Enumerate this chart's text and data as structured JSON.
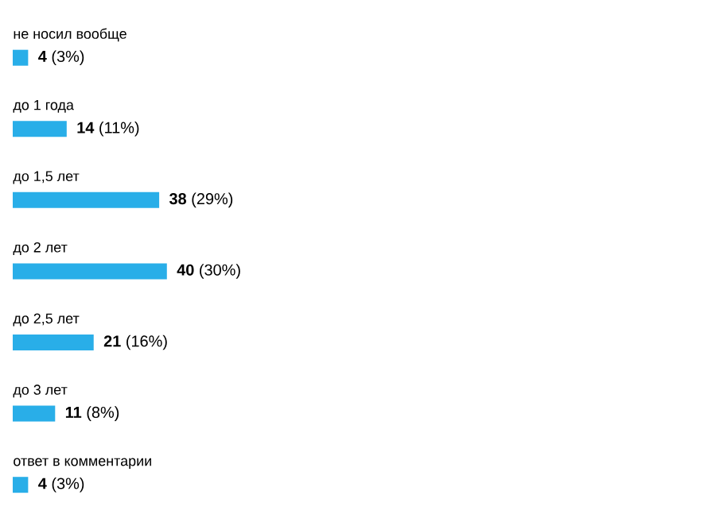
{
  "chart_data": {
    "type": "bar",
    "orientation": "horizontal",
    "color": "#29aee8",
    "categories": [
      "не носил вообще",
      "до 1 года",
      "до 1,5 лет",
      "до 2 лет",
      "до 2,5 лет",
      "до 3 лет",
      "ответ в комментарии"
    ],
    "values": [
      4,
      14,
      38,
      40,
      21,
      11,
      4
    ],
    "value_labels": [
      "**4** (3%)",
      "**14** (11%)",
      "**38** (29%)",
      "**40** (30%)",
      "**21** (16%)",
      "**11** (8%)",
      "**4** (3%)"
    ]
  }
}
